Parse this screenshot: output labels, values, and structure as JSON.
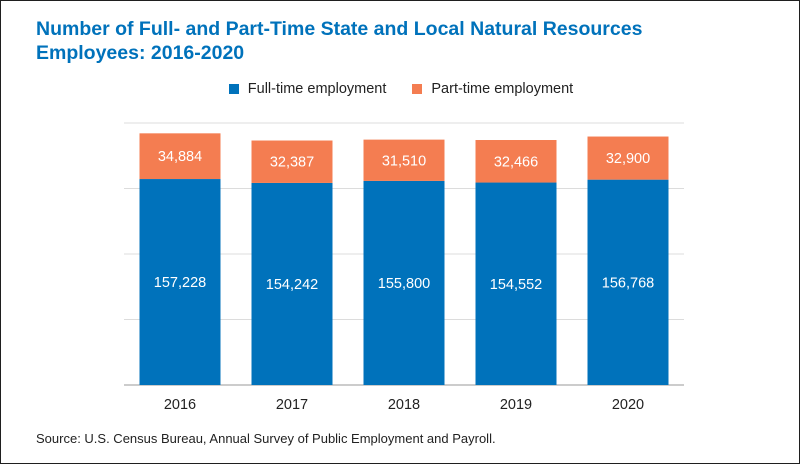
{
  "title_lines": [
    "Number of Full- and Part-Time State and Local Natural Resources",
    "Employees: 2016-2020"
  ],
  "source": "Source: U.S. Census Bureau, Annual Survey of Public Employment and Payroll.",
  "colors": {
    "title": "#0072bb",
    "full_time": "#0072bb",
    "part_time": "#f47d51",
    "gridline": "#dcdcdc",
    "axis": "#9a9a9a",
    "text": "#222222"
  },
  "chart_data": {
    "type": "bar",
    "stacked": true,
    "categories": [
      "2016",
      "2017",
      "2018",
      "2019",
      "2020"
    ],
    "series": [
      {
        "name": "Full-time employment",
        "color": "#0072bb",
        "values": [
          157228,
          154242,
          155800,
          154552,
          156768
        ]
      },
      {
        "name": "Part-time employment",
        "color": "#f47d51",
        "values": [
          34884,
          32387,
          31510,
          32466,
          32900
        ]
      }
    ],
    "data_labels": [
      [
        "157,228",
        "154,242",
        "155,800",
        "154,552",
        "156,768"
      ],
      [
        "34,884",
        "32,387",
        "31,510",
        "32,466",
        "32,900"
      ]
    ],
    "ylim": [
      0,
      200000
    ],
    "grid": true,
    "y_tick_labels_shown": false,
    "legend_position": "top-center"
  }
}
